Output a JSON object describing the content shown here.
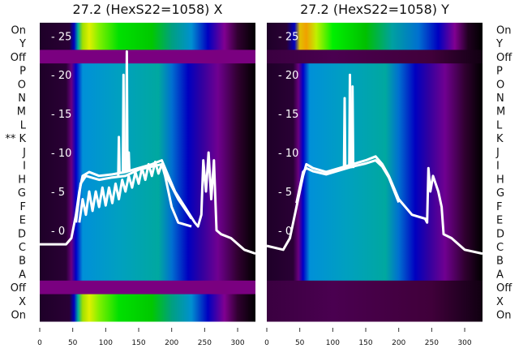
{
  "chart_data": [
    {
      "type": "heatmap",
      "title": "27.2 (HexS22=1058) X",
      "xlim": [
        0,
        327
      ],
      "ylim": [
        -11.7,
        26.7
      ],
      "xticks": [
        0,
        50,
        100,
        150,
        200,
        250,
        300
      ],
      "yticks": [
        25,
        20,
        15,
        10,
        5,
        0
      ],
      "row_labels": [
        "On",
        "Y",
        "Off",
        "P",
        "O",
        "N",
        "M",
        "L",
        "** K",
        "J",
        "I",
        "H",
        "G",
        "F",
        "E",
        "D",
        "C",
        "B",
        "A",
        "Off",
        "X",
        "On"
      ],
      "row_types": [
        "on",
        "on",
        "off",
        "base",
        "base",
        "base",
        "base",
        "base",
        "base",
        "base",
        "base",
        "base",
        "base",
        "base",
        "base",
        "base",
        "base",
        "base",
        "base",
        "off",
        "on",
        "on"
      ],
      "lines": [
        {
          "name": "trace-1",
          "points": [
            [
              0,
              -1.8
            ],
            [
              40,
              -1.8
            ],
            [
              48,
              -1
            ],
            [
              55,
              2
            ],
            [
              60,
              5
            ],
            [
              65,
              7
            ],
            [
              75,
              7.5
            ],
            [
              90,
              7
            ],
            [
              110,
              7.2
            ],
            [
              130,
              7.5
            ],
            [
              150,
              8
            ],
            [
              170,
              8.5
            ],
            [
              185,
              9
            ],
            [
              195,
              7
            ],
            [
              205,
              5
            ],
            [
              220,
              3
            ],
            [
              235,
              1
            ],
            [
              240,
              0.5
            ],
            [
              245,
              2
            ],
            [
              248,
              9
            ],
            [
              252,
              5
            ],
            [
              256,
              10
            ],
            [
              260,
              4
            ],
            [
              264,
              9
            ],
            [
              268,
              0
            ],
            [
              275,
              -0.5
            ],
            [
              290,
              -1
            ],
            [
              310,
              -2.5
            ],
            [
              327,
              -3
            ]
          ]
        },
        {
          "name": "trace-2",
          "points": [
            [
              55,
              1
            ],
            [
              62,
              6
            ],
            [
              70,
              7
            ],
            [
              90,
              6.5
            ],
            [
              110,
              6.8
            ],
            [
              130,
              7
            ],
            [
              150,
              7.8
            ],
            [
              170,
              8.2
            ],
            [
              185,
              8.5
            ],
            [
              195,
              6.5
            ],
            [
              210,
              4
            ],
            [
              230,
              1.5
            ]
          ]
        },
        {
          "name": "trace-oscillating",
          "points": [
            [
              60,
              1
            ],
            [
              65,
              4
            ],
            [
              70,
              2
            ],
            [
              75,
              5
            ],
            [
              80,
              2.5
            ],
            [
              85,
              5
            ],
            [
              90,
              3
            ],
            [
              95,
              5.5
            ],
            [
              100,
              3.2
            ],
            [
              105,
              5.5
            ],
            [
              110,
              3.5
            ],
            [
              115,
              6
            ],
            [
              120,
              4
            ],
            [
              125,
              6.5
            ],
            [
              130,
              5
            ],
            [
              135,
              7
            ],
            [
              140,
              5.5
            ],
            [
              145,
              7.5
            ],
            [
              150,
              6
            ],
            [
              155,
              8
            ],
            [
              160,
              6.5
            ],
            [
              165,
              8.5
            ],
            [
              170,
              7
            ],
            [
              175,
              8.8
            ],
            [
              180,
              7.3
            ],
            [
              185,
              8.5
            ],
            [
              190,
              7
            ],
            [
              200,
              3
            ],
            [
              210,
              1
            ],
            [
              230,
              0.5
            ]
          ]
        },
        {
          "name": "spike-1",
          "points": [
            [
              119,
              7
            ],
            [
              120,
              12
            ],
            [
              121,
              7.5
            ]
          ]
        },
        {
          "name": "spike-2",
          "points": [
            [
              126,
              7.5
            ],
            [
              127,
              20
            ],
            [
              128,
              7.5
            ]
          ]
        },
        {
          "name": "spike-3",
          "points": [
            [
              131,
              7.5
            ],
            [
              132,
              23
            ],
            [
              133,
              7.5
            ]
          ]
        },
        {
          "name": "spike-4",
          "points": [
            [
              134,
              7.5
            ],
            [
              135,
              10
            ],
            [
              136,
              7.5
            ]
          ]
        }
      ]
    },
    {
      "type": "heatmap",
      "title": "27.2 (HexS22=1058) Y",
      "xlim": [
        0,
        327
      ],
      "ylim": [
        -11.7,
        26.7
      ],
      "xticks": [
        0,
        50,
        100,
        150,
        200,
        250,
        300
      ],
      "yticks": [
        25,
        20,
        15,
        10,
        5,
        0
      ],
      "row_labels": [
        "On",
        "Y",
        "Off",
        "P",
        "O",
        "N",
        "M",
        "L",
        "K",
        "J",
        "I",
        "H",
        "G",
        "F",
        "E",
        "D",
        "C",
        "B",
        "A",
        "Off",
        "X",
        "On"
      ],
      "row_types": [
        "on2",
        "on2",
        "off2",
        "base",
        "base",
        "base",
        "base",
        "base",
        "base",
        "base",
        "base",
        "base",
        "base",
        "base",
        "base",
        "base",
        "base",
        "base",
        "base",
        "off2",
        "off2",
        "off2"
      ],
      "lines": [
        {
          "name": "trace-1",
          "points": [
            [
              0,
              -2
            ],
            [
              25,
              -2.5
            ],
            [
              35,
              -1
            ],
            [
              45,
              3
            ],
            [
              55,
              7
            ],
            [
              60,
              8.5
            ],
            [
              70,
              8
            ],
            [
              90,
              7.5
            ],
            [
              110,
              8
            ],
            [
              130,
              8.5
            ],
            [
              150,
              9
            ],
            [
              165,
              9.5
            ],
            [
              175,
              8.5
            ],
            [
              185,
              7
            ],
            [
              200,
              4
            ],
            [
              220,
              2
            ],
            [
              240,
              1.5
            ],
            [
              243,
              1
            ],
            [
              245,
              8
            ],
            [
              248,
              5
            ],
            [
              252,
              7
            ],
            [
              256,
              6
            ],
            [
              260,
              5
            ],
            [
              265,
              3
            ],
            [
              268,
              -0.5
            ],
            [
              280,
              -1
            ],
            [
              300,
              -2.5
            ],
            [
              327,
              -3
            ]
          ]
        },
        {
          "name": "trace-2",
          "points": [
            [
              45,
              3.5
            ],
            [
              55,
              7.5
            ],
            [
              60,
              8
            ],
            [
              70,
              7.6
            ],
            [
              90,
              7.2
            ],
            [
              110,
              7.7
            ],
            [
              130,
              8.2
            ],
            [
              150,
              8.6
            ],
            [
              165,
              9
            ],
            [
              175,
              8.2
            ],
            [
              185,
              6.8
            ],
            [
              200,
              3.6
            ]
          ]
        },
        {
          "name": "spike-1",
          "points": [
            [
              117,
              8
            ],
            [
              118,
              17
            ],
            [
              119,
              8
            ]
          ]
        },
        {
          "name": "spike-2",
          "points": [
            [
              125,
              8
            ],
            [
              126,
              20
            ],
            [
              127,
              8
            ]
          ]
        },
        {
          "name": "spike-3",
          "points": [
            [
              129,
              8
            ],
            [
              130,
              18.5
            ],
            [
              131,
              8
            ]
          ]
        }
      ]
    }
  ],
  "palettes": {
    "base": [
      [
        0,
        "#1e0028"
      ],
      [
        40,
        "#2a0035"
      ],
      [
        48,
        "#6a0080"
      ],
      [
        55,
        "#0000c8"
      ],
      [
        65,
        "#0090d8"
      ],
      [
        120,
        "#00a0c0"
      ],
      [
        180,
        "#00a8a0"
      ],
      [
        200,
        "#0070d0"
      ],
      [
        225,
        "#0000c0"
      ],
      [
        245,
        "#3000a0"
      ],
      [
        270,
        "#700090"
      ],
      [
        300,
        "#300030"
      ],
      [
        327,
        "#000000"
      ]
    ],
    "off": [
      [
        0,
        "#7a0080"
      ],
      [
        327,
        "#7a0080"
      ]
    ],
    "off2": [
      [
        0,
        "#3a0040"
      ],
      [
        100,
        "#4a0050"
      ],
      [
        250,
        "#40003a"
      ],
      [
        300,
        "#200020"
      ],
      [
        327,
        "#100010"
      ]
    ],
    "on": [
      [
        0,
        "#1e0028"
      ],
      [
        45,
        "#2a0035"
      ],
      [
        52,
        "#0000c0"
      ],
      [
        58,
        "#00b0a0"
      ],
      [
        65,
        "#a0e000"
      ],
      [
        75,
        "#e0f000"
      ],
      [
        90,
        "#80f000"
      ],
      [
        120,
        "#00e000"
      ],
      [
        170,
        "#00c800"
      ],
      [
        200,
        "#00a080"
      ],
      [
        230,
        "#0090d0"
      ],
      [
        255,
        "#0000c0"
      ],
      [
        280,
        "#800090"
      ],
      [
        300,
        "#300030"
      ],
      [
        327,
        "#000000"
      ]
    ],
    "on2": [
      [
        0,
        "#1e0028"
      ],
      [
        30,
        "#2a0035"
      ],
      [
        42,
        "#0000c0"
      ],
      [
        50,
        "#e0c000"
      ],
      [
        60,
        "#f0a000"
      ],
      [
        75,
        "#c0f000"
      ],
      [
        100,
        "#00f000"
      ],
      [
        150,
        "#00c000"
      ],
      [
        190,
        "#00a0a0"
      ],
      [
        230,
        "#0070d0"
      ],
      [
        260,
        "#0000c0"
      ],
      [
        285,
        "#800090"
      ],
      [
        305,
        "#200020"
      ],
      [
        327,
        "#000000"
      ]
    ]
  }
}
